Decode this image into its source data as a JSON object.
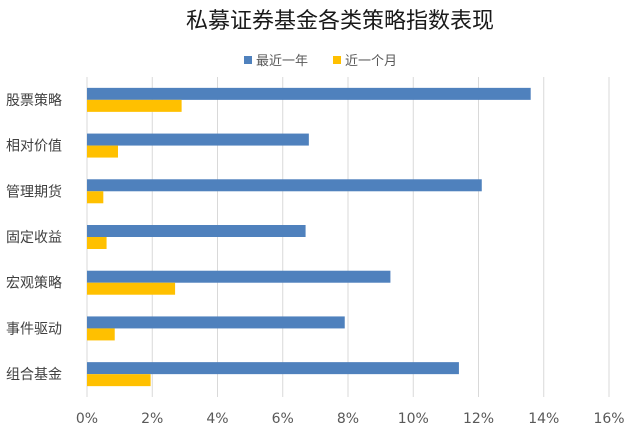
{
  "chart_data": {
    "type": "bar",
    "orientation": "horizontal",
    "title": "私募证券基金各类策略指数表现",
    "categories": [
      "股票策略",
      "相对价值",
      "管理期货",
      "固定收益",
      "宏观策略",
      "事件驱动",
      "组合基金"
    ],
    "series": [
      {
        "name": "最近一年",
        "color": "#4F81BD",
        "values": [
          13.6,
          6.8,
          12.1,
          6.7,
          9.3,
          7.9,
          11.4
        ]
      },
      {
        "name": "近一个月",
        "color": "#FFC000",
        "values": [
          2.9,
          0.95,
          0.5,
          0.6,
          2.7,
          0.85,
          1.95
        ]
      }
    ],
    "xlim": [
      0,
      16
    ],
    "xticks": [
      "0%",
      "2%",
      "4%",
      "6%",
      "8%",
      "10%",
      "12%",
      "14%",
      "16%"
    ],
    "xlabel": "",
    "ylabel": "",
    "grid": true,
    "legend_position": "top"
  }
}
